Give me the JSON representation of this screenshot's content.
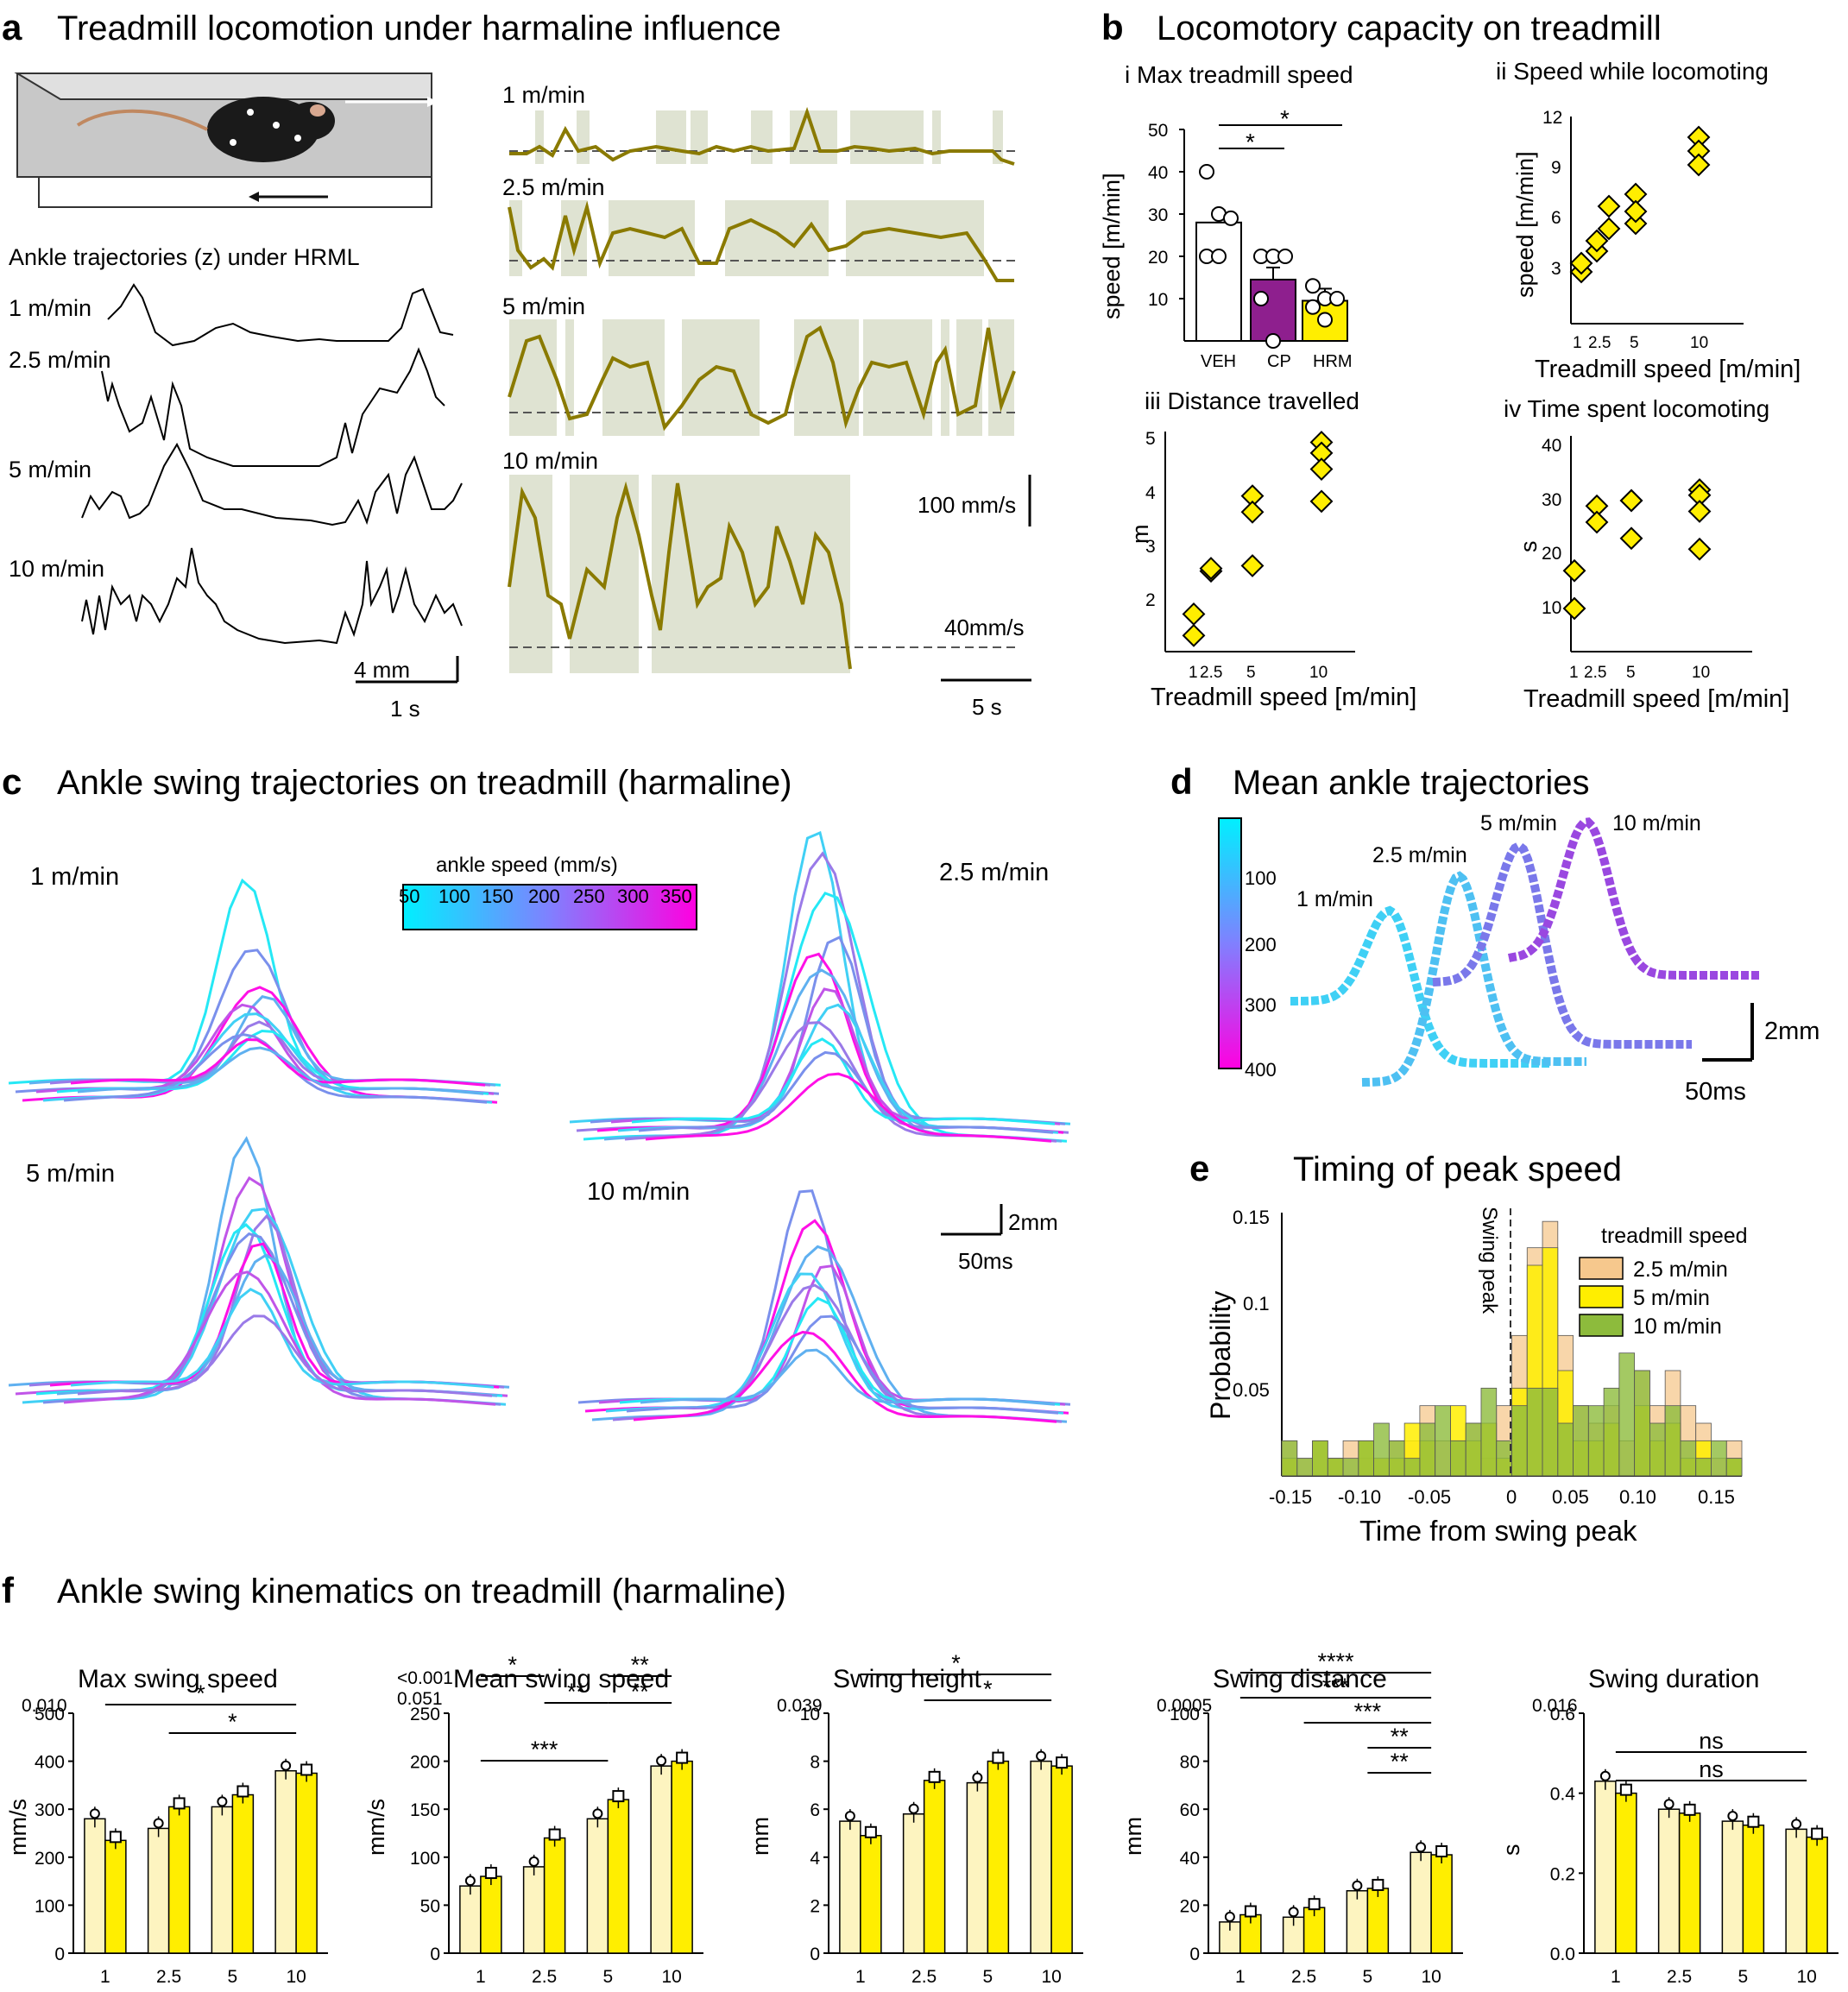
{
  "panel_letters": {
    "a": "a",
    "b": "b",
    "c": "c",
    "d": "d",
    "e": "e",
    "f": "f"
  },
  "panel_a": {
    "title": "Treadmill locomotion under harmaline influence",
    "ankle_title": "Ankle trajectories (z) under HRML",
    "ankle_labels": [
      "1 m/min",
      "2.5 m/min",
      "5 m/min",
      "10 m/min"
    ],
    "scale_y": "4 mm",
    "scale_x": "1 s",
    "speed_labels": [
      "1 m/min",
      "2.5 m/min",
      "5 m/min",
      "10 m/min"
    ],
    "speed_scale": "100 mm/s",
    "threshold": "40mm/s",
    "time_scale": "5 s"
  },
  "panel_b": {
    "title": "Locomotory capacity on treadmill",
    "i": {
      "title": "i Max treadmill speed",
      "ylabel": "speed [m/min]",
      "yticks": [
        "50",
        "40",
        "30",
        "20",
        "10"
      ],
      "categories": [
        "VEH",
        "CP",
        "HRM"
      ],
      "sig": [
        "*",
        "*"
      ]
    },
    "ii": {
      "title": "ii Speed while locomoting",
      "ylabel": "speed [m/min]",
      "yticks": [
        "12",
        "9",
        "6",
        "3"
      ],
      "xticks": [
        "1",
        "2.5",
        "5",
        "10"
      ],
      "xlabel": "Treadmill speed [m/min]"
    },
    "iii": {
      "title": "iii Distance travelled",
      "ylabel": "m",
      "yticks": [
        "5",
        "4",
        "3",
        "2"
      ],
      "xticks": [
        "1",
        "2.5",
        "5",
        "10"
      ],
      "xlabel": "Treadmill speed [m/min]"
    },
    "iv": {
      "title": "iv Time spent locomoting",
      "ylabel": "s",
      "yticks": [
        "40",
        "30",
        "20",
        "10"
      ],
      "xticks": [
        "1",
        "2.5",
        "5",
        "10"
      ],
      "xlabel": "Treadmill speed [m/min]"
    }
  },
  "panel_c": {
    "title": "Ankle swing trajectories on treadmill (harmaline)",
    "labels": [
      "1 m/min",
      "2.5 m/min",
      "5 m/min",
      "10 m/min"
    ],
    "colorbar_title": "ankle speed (mm/s)",
    "colorbar_ticks": [
      "50",
      "100",
      "150",
      "200",
      "250",
      "300",
      "350"
    ],
    "scale_y": "2mm",
    "scale_x": "50ms"
  },
  "panel_d": {
    "title": "Mean ankle trajectories",
    "labels": [
      "1 m/min",
      "2.5 m/min",
      "5 m/min",
      "10 m/min"
    ],
    "colorbar_ticks": [
      "100",
      "200",
      "300",
      "400"
    ],
    "scale_y": "2mm",
    "scale_x": "50ms"
  },
  "panel_e": {
    "title": "Timing of peak speed",
    "ylabel": "Probability",
    "xlabel": "Time from swing peak",
    "yticks": [
      "0.15",
      "0.1",
      "0.05"
    ],
    "xticks": [
      "-0.15",
      "-0.10",
      "-0.05",
      "0",
      "0.05",
      "0.10",
      "0.15"
    ],
    "swing_peak_label": "Swing peak",
    "legend_title": "treadmill speed",
    "legend": [
      "2.5 m/min",
      "5 m/min",
      "10 m/min"
    ]
  },
  "panel_f": {
    "title": "Ankle swing kinematics on treadmill (harmaline)",
    "xticks": [
      "1",
      "2.5",
      "5",
      "10"
    ]
  },
  "colors": {
    "olive": "#8a7a00",
    "shade": "#dfe3d2",
    "yellow": "#ffee00",
    "pale_yellow": "#fdf4c0",
    "purple": "#8e1f8e",
    "orange": "#f6c88d",
    "green": "#8dbb3c"
  },
  "chart_data": [
    {
      "type": "bar",
      "title": "i Max treadmill speed",
      "ylabel": "speed [m/min]",
      "categories": [
        "VEH",
        "CP",
        "HRM"
      ],
      "values": [
        28,
        14.5,
        9.5
      ],
      "ylim": [
        0,
        50
      ],
      "points": [
        [
          40,
          30,
          29,
          20,
          20
        ],
        [
          20,
          20,
          20,
          10,
          0
        ],
        [
          13,
          10,
          10,
          8,
          5
        ]
      ]
    },
    {
      "type": "scatter",
      "title": "ii Speed while locomoting",
      "xlabel": "Treadmill speed [m/min]",
      "ylabel": "speed [m/min]",
      "ylim": [
        0,
        12
      ],
      "x": [
        1,
        1,
        1.5,
        1.5,
        2.5,
        2.5,
        5,
        5,
        5,
        10,
        10,
        10
      ],
      "y": [
        3.0,
        3.5,
        4.2,
        4.8,
        5.5,
        6.8,
        7.5,
        5.8,
        6.5,
        10.8,
        10.0,
        9.2
      ]
    },
    {
      "type": "scatter",
      "title": "iii Distance travelled",
      "xlabel": "Treadmill speed [m/min]",
      "ylabel": "m",
      "ylim": [
        1,
        5
      ],
      "x": [
        1,
        1,
        2.5,
        2.5,
        5,
        5,
        5,
        10,
        10,
        10,
        10
      ],
      "y": [
        1.3,
        1.7,
        2.5,
        2.55,
        3.9,
        3.6,
        2.6,
        4.9,
        4.7,
        4.4,
        3.8
      ]
    },
    {
      "type": "scatter",
      "title": "iv Time spent locomoting",
      "xlabel": "Treadmill speed [m/min]",
      "ylabel": "s",
      "ylim": [
        0,
        40
      ],
      "x": [
        1,
        1,
        2.5,
        2.5,
        5,
        5,
        5,
        10,
        10,
        10,
        10
      ],
      "y": [
        15,
        8,
        27,
        24,
        28,
        28,
        21,
        30,
        29,
        26,
        19
      ]
    },
    {
      "type": "bar",
      "title": "Timing of peak speed",
      "xlabel": "Time from swing peak",
      "ylabel": "Probability",
      "ylim": [
        0,
        0.15
      ],
      "x": [
        -0.15,
        -0.14,
        -0.13,
        -0.12,
        -0.11,
        -0.1,
        -0.09,
        -0.08,
        -0.07,
        -0.06,
        -0.05,
        -0.04,
        -0.03,
        -0.02,
        -0.01,
        0.0,
        0.01,
        0.02,
        0.03,
        0.04,
        0.05,
        0.06,
        0.07,
        0.08,
        0.09,
        0.1,
        0.11,
        0.12,
        0.13,
        0.14
      ],
      "series": [
        {
          "name": "2.5 m/min",
          "values": [
            0.02,
            0.01,
            0.0,
            0.01,
            0.02,
            0.01,
            0.0,
            0.02,
            0.02,
            0.04,
            0.02,
            0.02,
            0.03,
            0.01,
            0.04,
            0.08,
            0.13,
            0.145,
            0.08,
            0.04,
            0.03,
            0.04,
            0.02,
            0.06,
            0.04,
            0.06,
            0.04,
            0.03,
            0.01,
            0.02
          ]
        },
        {
          "name": "5 m/min",
          "values": [
            0.01,
            0.0,
            0.02,
            0.01,
            0.0,
            0.02,
            0.01,
            0.01,
            0.03,
            0.02,
            0.0,
            0.04,
            0.02,
            0.03,
            0.01,
            0.05,
            0.12,
            0.13,
            0.06,
            0.02,
            0.02,
            0.03,
            0.0,
            0.04,
            0.02,
            0.03,
            0.01,
            0.02,
            0.0,
            0.01
          ]
        },
        {
          "name": "10 m/min",
          "values": [
            0.02,
            0.01,
            0.02,
            0.01,
            0.01,
            0.02,
            0.03,
            0.02,
            0.01,
            0.03,
            0.04,
            0.02,
            0.03,
            0.05,
            0.02,
            0.04,
            0.05,
            0.05,
            0.03,
            0.04,
            0.04,
            0.05,
            0.07,
            0.06,
            0.03,
            0.04,
            0.02,
            0.01,
            0.02,
            0.01
          ]
        }
      ]
    },
    {
      "type": "bar",
      "title": "Max swing speed",
      "note": "0.010",
      "ylabel": "mm/s",
      "categories": [
        "1",
        "2.5",
        "5",
        "10"
      ],
      "ylim": [
        0,
        500
      ],
      "yticks": [
        0,
        100,
        200,
        300,
        400,
        500
      ],
      "series": [
        {
          "values": [
            280,
            260,
            305,
            380
          ]
        },
        {
          "values": [
            235,
            305,
            330,
            375
          ]
        }
      ],
      "sig": [
        "*",
        "*"
      ]
    },
    {
      "type": "bar",
      "title": "Mean swing speed",
      "note": [
        "<0.001",
        "0.051"
      ],
      "ylabel": "mm/s",
      "categories": [
        "1",
        "2.5",
        "5",
        "10"
      ],
      "ylim": [
        0,
        250
      ],
      "yticks": [
        0,
        50,
        100,
        150,
        200,
        250
      ],
      "series": [
        {
          "values": [
            70,
            90,
            140,
            195
          ]
        },
        {
          "values": [
            80,
            120,
            160,
            200
          ]
        }
      ],
      "sig": [
        "*",
        "**",
        "***",
        "**",
        "**"
      ]
    },
    {
      "type": "bar",
      "title": "Swing height",
      "note": "0.039",
      "ylabel": "mm",
      "categories": [
        "1",
        "2.5",
        "5",
        "10"
      ],
      "ylim": [
        0,
        10
      ],
      "yticks": [
        0,
        2,
        4,
        6,
        8,
        10
      ],
      "series": [
        {
          "values": [
            5.5,
            5.8,
            7.1,
            8.0
          ]
        },
        {
          "values": [
            4.9,
            7.2,
            8.0,
            7.8
          ]
        }
      ],
      "sig": [
        "*",
        "*"
      ]
    },
    {
      "type": "bar",
      "title": "Swing distance",
      "note": "0.0005",
      "ylabel": "mm",
      "categories": [
        "1",
        "2.5",
        "5",
        "10"
      ],
      "ylim": [
        0,
        100
      ],
      "yticks": [
        0,
        20,
        40,
        60,
        80,
        100
      ],
      "series": [
        {
          "values": [
            13,
            15,
            26,
            42
          ]
        },
        {
          "values": [
            16,
            19,
            27,
            41
          ]
        }
      ],
      "sig": [
        "****",
        "***",
        "***",
        "**",
        "**"
      ]
    },
    {
      "type": "bar",
      "title": "Swing duration",
      "note": "0.016",
      "ylabel": "s",
      "categories": [
        "1",
        "2.5",
        "5",
        "10"
      ],
      "ylim": [
        0,
        0.6
      ],
      "yticks": [
        0.0,
        0.2,
        0.4,
        0.6
      ],
      "series": [
        {
          "values": [
            0.43,
            0.36,
            0.33,
            0.31
          ]
        },
        {
          "values": [
            0.4,
            0.35,
            0.32,
            0.29
          ]
        }
      ],
      "sig": [
        "ns",
        "ns"
      ]
    }
  ]
}
